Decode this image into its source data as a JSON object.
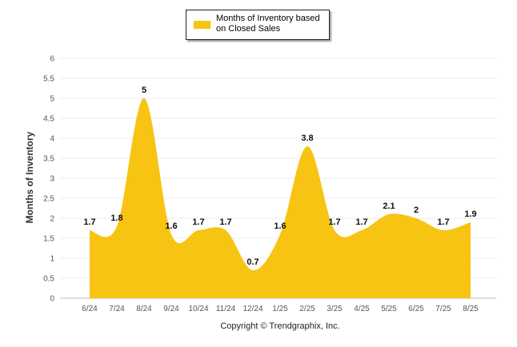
{
  "legend": {
    "label": "Months of Inventory based on Closed Sales"
  },
  "footer": {
    "copyright": "Copyright © Trendgraphix, Inc."
  },
  "chart_data": {
    "type": "area",
    "title": "",
    "xlabel": "",
    "ylabel": "Months of Inventory",
    "categories": [
      "6/24",
      "7/24",
      "8/24",
      "9/24",
      "10/24",
      "11/24",
      "12/24",
      "1/25",
      "2/25",
      "3/25",
      "4/25",
      "5/25",
      "6/25",
      "7/25",
      "8/25"
    ],
    "series": [
      {
        "name": "Months of Inventory based on Closed Sales",
        "values": [
          1.7,
          1.8,
          5,
          1.6,
          1.7,
          1.7,
          0.7,
          1.6,
          3.8,
          1.7,
          1.7,
          2.1,
          2,
          1.7,
          1.9
        ]
      }
    ],
    "data_labels": [
      "1.7",
      "1.8",
      "5",
      "1.6",
      "1.7",
      "1.7",
      "0.7",
      "1.6",
      "3.8",
      "1.7",
      "1.7",
      "2.1",
      "2",
      "1.7",
      "1.9"
    ],
    "ylim": [
      0,
      6
    ],
    "yticks": [
      "0",
      "0.5",
      "1",
      "1.5",
      "2",
      "2.5",
      "3",
      "3.5",
      "4",
      "4.5",
      "5",
      "5.5",
      "6"
    ],
    "grid": true,
    "legend_position": "top-center",
    "colors": {
      "fill": "#F7C413"
    }
  }
}
